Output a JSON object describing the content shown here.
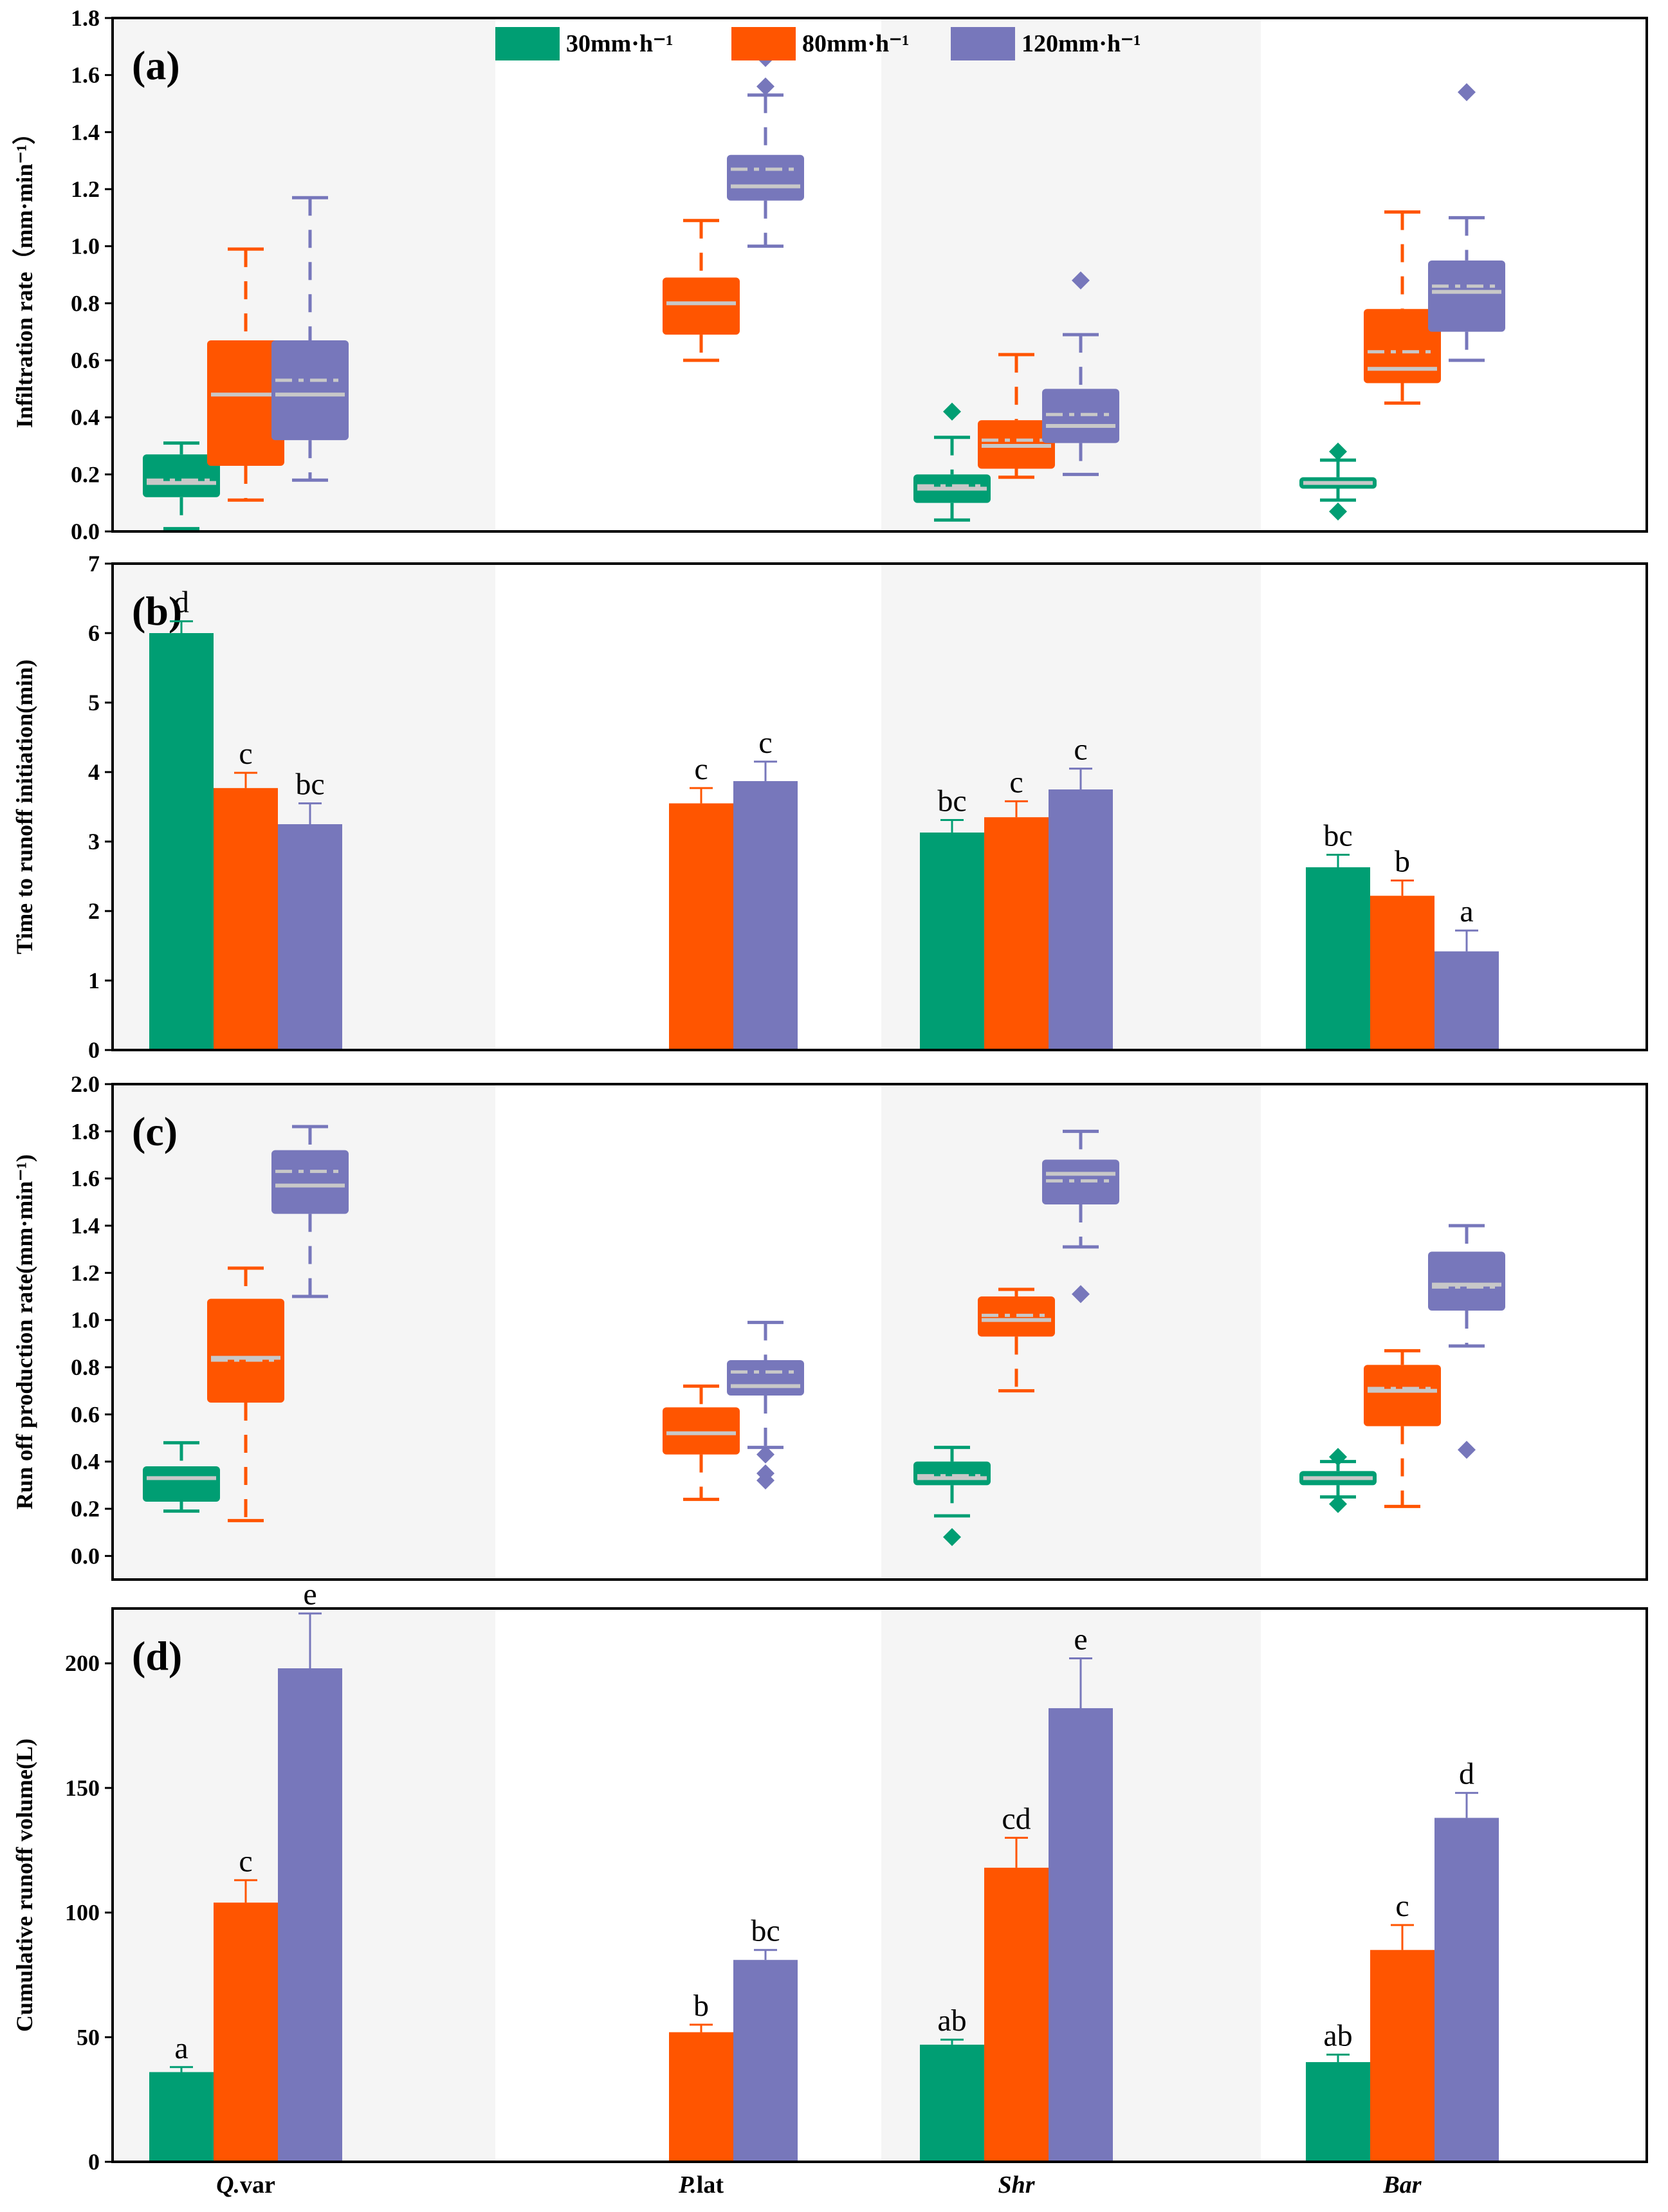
{
  "colors": {
    "30": "#009E73",
    "80": "#FF5500",
    "120": "#7777BB",
    "band": "#F5F5F5",
    "median": "#C8C8C8"
  },
  "legend": [
    {
      "key": "30",
      "label": "30mm·h⁻¹"
    },
    {
      "key": "80",
      "label": "80mm·h⁻¹"
    },
    {
      "key": "120",
      "label": "120mm·h⁻¹"
    }
  ],
  "chart_data": [
    {
      "id": "a",
      "type": "box",
      "panel_label": "(a)",
      "ylabel": "Infiltration rate（mm·min⁻¹）",
      "ylim": [
        0,
        1.8
      ],
      "yticks": [
        0.0,
        0.2,
        0.4,
        0.6,
        0.8,
        1.0,
        1.2,
        1.4,
        1.6,
        1.8
      ],
      "tick_decimals": 1,
      "categories": [
        "Q.var",
        "P.lat",
        "Shr",
        "Bar"
      ],
      "groups": [
        [
          {
            "series": "30",
            "whisker_low": 0.01,
            "q1": 0.12,
            "median": 0.17,
            "mean": 0.18,
            "q3": 0.27,
            "whisker_high": 0.31,
            "outliers": []
          },
          {
            "series": "80",
            "whisker_low": 0.11,
            "q1": 0.23,
            "median": 0.48,
            "mean": 0.48,
            "q3": 0.67,
            "whisker_high": 0.99,
            "outliers": []
          },
          {
            "series": "120",
            "whisker_low": 0.18,
            "q1": 0.32,
            "median": 0.48,
            "mean": 0.53,
            "q3": 0.67,
            "whisker_high": 1.17,
            "outliers": []
          }
        ],
        [
          null,
          {
            "series": "80",
            "whisker_low": 0.6,
            "q1": 0.69,
            "median": 0.8,
            "mean": 0.8,
            "q3": 0.89,
            "whisker_high": 1.09,
            "outliers": []
          },
          {
            "series": "120",
            "whisker_low": 1.0,
            "q1": 1.16,
            "median": 1.21,
            "mean": 1.27,
            "q3": 1.32,
            "whisker_high": 1.53,
            "outliers": [
              1.56,
              1.66,
              1.68
            ]
          }
        ],
        [
          {
            "series": "30",
            "whisker_low": 0.04,
            "q1": 0.1,
            "median": 0.15,
            "mean": 0.16,
            "q3": 0.2,
            "whisker_high": 0.33,
            "outliers": [
              0.42
            ]
          },
          {
            "series": "80",
            "whisker_low": 0.19,
            "q1": 0.22,
            "median": 0.3,
            "mean": 0.32,
            "q3": 0.39,
            "whisker_high": 0.62,
            "outliers": []
          },
          {
            "series": "120",
            "whisker_low": 0.2,
            "q1": 0.31,
            "median": 0.37,
            "mean": 0.41,
            "q3": 0.5,
            "whisker_high": 0.69,
            "outliers": [
              0.88
            ]
          }
        ],
        [
          {
            "series": "30",
            "whisker_low": 0.11,
            "q1": 0.15,
            "median": 0.17,
            "mean": 0.17,
            "q3": 0.19,
            "whisker_high": 0.25,
            "outliers": [
              0.07,
              0.28
            ]
          },
          {
            "series": "80",
            "whisker_low": 0.45,
            "q1": 0.52,
            "median": 0.57,
            "mean": 0.63,
            "q3": 0.78,
            "whisker_high": 1.12,
            "outliers": []
          },
          {
            "series": "120",
            "whisker_low": 0.6,
            "q1": 0.7,
            "median": 0.84,
            "mean": 0.86,
            "q3": 0.95,
            "whisker_high": 1.1,
            "outliers": [
              1.54
            ]
          }
        ]
      ]
    },
    {
      "id": "b",
      "type": "bar",
      "panel_label": "(b)",
      "ylabel": "Time to runoff initiation(min)",
      "ylim": [
        0,
        7
      ],
      "yticks": [
        0,
        1,
        2,
        3,
        4,
        5,
        6,
        7
      ],
      "tick_decimals": 0,
      "categories": [
        "Q.var",
        "P.lat",
        "Shr",
        "Bar"
      ],
      "groups": [
        [
          {
            "series": "30",
            "value": 6.0,
            "error": 0.17,
            "label": "d"
          },
          {
            "series": "80",
            "value": 3.77,
            "error": 0.22,
            "label": "c"
          },
          {
            "series": "120",
            "value": 3.25,
            "error": 0.3,
            "label": "bc"
          }
        ],
        [
          null,
          {
            "series": "80",
            "value": 3.55,
            "error": 0.22,
            "label": "c"
          },
          {
            "series": "120",
            "value": 3.87,
            "error": 0.28,
            "label": "c"
          }
        ],
        [
          {
            "series": "30",
            "value": 3.13,
            "error": 0.18,
            "label": "bc"
          },
          {
            "series": "80",
            "value": 3.35,
            "error": 0.23,
            "label": "c"
          },
          {
            "series": "120",
            "value": 3.75,
            "error": 0.3,
            "label": "c"
          }
        ],
        [
          {
            "series": "30",
            "value": 2.63,
            "error": 0.18,
            "label": "bc"
          },
          {
            "series": "80",
            "value": 2.22,
            "error": 0.22,
            "label": "b"
          },
          {
            "series": "120",
            "value": 1.42,
            "error": 0.3,
            "label": "a"
          }
        ]
      ]
    },
    {
      "id": "c",
      "type": "box",
      "panel_label": "(c)",
      "ylabel": "Run off production rate(mm·min⁻¹)",
      "ylim": [
        -0.1,
        2.0
      ],
      "yticks": [
        0.0,
        0.2,
        0.4,
        0.6,
        0.8,
        1.0,
        1.2,
        1.4,
        1.6,
        1.8,
        2.0
      ],
      "tick_decimals": 1,
      "categories": [
        "Q.var",
        "P.lat",
        "Shr",
        "Bar"
      ],
      "groups": [
        [
          {
            "series": "30",
            "whisker_low": 0.19,
            "q1": 0.23,
            "median": 0.33,
            "mean": 0.33,
            "q3": 0.38,
            "whisker_high": 0.48,
            "outliers": []
          },
          {
            "series": "80",
            "whisker_low": 0.15,
            "q1": 0.65,
            "median": 0.84,
            "mean": 0.83,
            "q3": 1.09,
            "whisker_high": 1.22,
            "outliers": []
          },
          {
            "series": "120",
            "whisker_low": 1.1,
            "q1": 1.45,
            "median": 1.57,
            "mean": 1.63,
            "q3": 1.72,
            "whisker_high": 1.82,
            "outliers": []
          }
        ],
        [
          null,
          {
            "series": "80",
            "whisker_low": 0.24,
            "q1": 0.43,
            "median": 0.52,
            "mean": 0.52,
            "q3": 0.63,
            "whisker_high": 0.72,
            "outliers": []
          },
          {
            "series": "120",
            "whisker_low": 0.46,
            "q1": 0.68,
            "median": 0.72,
            "mean": 0.78,
            "q3": 0.83,
            "whisker_high": 0.99,
            "outliers": [
              0.32,
              0.35,
              0.43
            ]
          }
        ],
        [
          {
            "series": "30",
            "whisker_low": 0.17,
            "q1": 0.3,
            "median": 0.33,
            "mean": 0.34,
            "q3": 0.4,
            "whisker_high": 0.46,
            "outliers": [
              0.08
            ]
          },
          {
            "series": "80",
            "whisker_low": 0.7,
            "q1": 0.93,
            "median": 1.0,
            "mean": 1.02,
            "q3": 1.1,
            "whisker_high": 1.13,
            "outliers": []
          },
          {
            "series": "120",
            "whisker_low": 1.31,
            "q1": 1.49,
            "median": 1.62,
            "mean": 1.59,
            "q3": 1.68,
            "whisker_high": 1.8,
            "outliers": [
              1.11
            ]
          }
        ],
        [
          {
            "series": "30",
            "whisker_low": 0.25,
            "q1": 0.3,
            "median": 0.33,
            "mean": 0.33,
            "q3": 0.36,
            "whisker_high": 0.4,
            "outliers": [
              0.22,
              0.42
            ]
          },
          {
            "series": "80",
            "whisker_low": 0.21,
            "q1": 0.55,
            "median": 0.7,
            "mean": 0.71,
            "q3": 0.81,
            "whisker_high": 0.87,
            "outliers": []
          },
          {
            "series": "120",
            "whisker_low": 0.89,
            "q1": 1.04,
            "median": 1.15,
            "mean": 1.14,
            "q3": 1.29,
            "whisker_high": 1.4,
            "outliers": [
              0.45
            ]
          }
        ]
      ]
    },
    {
      "id": "d",
      "type": "bar",
      "panel_label": "(d)",
      "ylabel": "Cumulative runoff volume(L)",
      "ylim": [
        0,
        222
      ],
      "yticks": [
        0,
        50,
        100,
        150,
        200
      ],
      "tick_decimals": 0,
      "categories": [
        "Q.var",
        "P.lat",
        "Shr",
        "Bar"
      ],
      "groups": [
        [
          {
            "series": "30",
            "value": 36,
            "error": 2,
            "label": "a"
          },
          {
            "series": "80",
            "value": 104,
            "error": 9,
            "label": "c"
          },
          {
            "series": "120",
            "value": 198,
            "error": 22,
            "label": "e"
          }
        ],
        [
          null,
          {
            "series": "80",
            "value": 52,
            "error": 3,
            "label": "b"
          },
          {
            "series": "120",
            "value": 81,
            "error": 4,
            "label": "bc"
          }
        ],
        [
          {
            "series": "30",
            "value": 47,
            "error": 2,
            "label": "ab"
          },
          {
            "series": "80",
            "value": 118,
            "error": 12,
            "label": "cd"
          },
          {
            "series": "120",
            "value": 182,
            "error": 20,
            "label": "e"
          }
        ],
        [
          {
            "series": "30",
            "value": 40,
            "error": 3,
            "label": "ab"
          },
          {
            "series": "80",
            "value": 85,
            "error": 10,
            "label": "c"
          },
          {
            "series": "120",
            "value": 138,
            "error": 10,
            "label": "d"
          }
        ]
      ]
    }
  ],
  "x_labels": [
    {
      "bold": "Q.",
      "rest": "var"
    },
    {
      "bold": "P.",
      "rest": "lat"
    },
    {
      "bold": "Shr",
      "rest": ""
    },
    {
      "bold": "Bar",
      "rest": ""
    }
  ]
}
